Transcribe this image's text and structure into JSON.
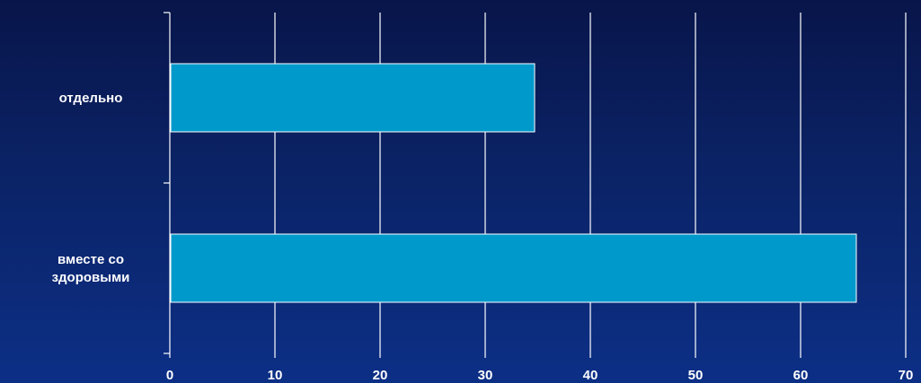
{
  "chart_data": {
    "type": "bar",
    "orientation": "horizontal",
    "categories": [
      [
        "отдельно"
      ],
      [
        "вместе со",
        "здоровыми"
      ]
    ],
    "values": [
      34.7,
      65.3
    ],
    "xlim": [
      0,
      70
    ],
    "x_ticks": [
      "0",
      "10",
      "20",
      "30",
      "40",
      "50",
      "60",
      "70"
    ],
    "grid": true,
    "title": "",
    "xlabel": "",
    "ylabel": "",
    "colors": {
      "bar": "#0099cc",
      "bar_border": "#ffffff",
      "grid": "#ffffff",
      "text": "#ffffff"
    }
  }
}
